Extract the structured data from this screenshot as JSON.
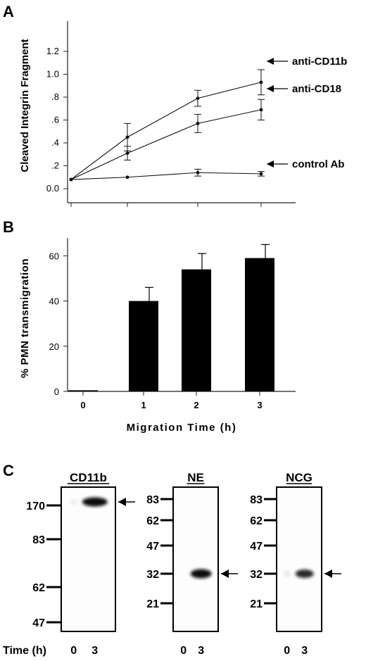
{
  "panels": {
    "a": "A",
    "b": "B",
    "c": "C"
  },
  "chart_data": [
    {
      "type": "line",
      "ylabel": "Cleaved Integrin Fragment",
      "yticks": [
        "0.0",
        ".2",
        ".4",
        ".6",
        ".8",
        "1.0",
        "1.2"
      ],
      "ylim": [
        0,
        1.3
      ],
      "x": [
        0,
        1,
        2,
        3
      ],
      "series": [
        {
          "name": "anti-CD11b",
          "values": [
            0.08,
            0.45,
            0.79,
            0.93
          ],
          "errors": [
            0.01,
            0.12,
            0.07,
            0.11
          ]
        },
        {
          "name": "anti-CD18",
          "values": [
            0.08,
            0.31,
            0.57,
            0.69
          ],
          "errors": [
            0.01,
            0.06,
            0.08,
            0.09
          ]
        },
        {
          "name": "control Ab",
          "values": [
            0.08,
            0.1,
            0.14,
            0.13
          ],
          "errors": [
            0.01,
            0.01,
            0.03,
            0.02
          ]
        }
      ],
      "grid": false
    },
    {
      "type": "bar",
      "ylabel": "% PMN transmigration",
      "xlabel": "Migration Time (h)",
      "categories": [
        "0",
        "1",
        "2",
        "3"
      ],
      "values": [
        0.5,
        40,
        54,
        59
      ],
      "errors": [
        0,
        6,
        7,
        6
      ],
      "yticks": [
        "0",
        "20",
        "40",
        "60"
      ],
      "ylim": [
        0,
        70
      ],
      "grid": false
    }
  ],
  "blots": [
    {
      "title": "CD11b",
      "markers": [
        {
          "label": "170",
          "kda": 170
        },
        {
          "label": "83",
          "kda": 83
        },
        {
          "label": "62",
          "kda": 62
        },
        {
          "label": "47",
          "kda": 47
        }
      ],
      "lanes": [
        "0",
        "3"
      ],
      "band_intensity": [
        0.05,
        1.0
      ]
    },
    {
      "title": "NE",
      "markers": [
        {
          "label": "83",
          "kda": 83
        },
        {
          "label": "62",
          "kda": 62
        },
        {
          "label": "47",
          "kda": 47
        },
        {
          "label": "32",
          "kda": 32
        },
        {
          "label": "21",
          "kda": 21
        }
      ],
      "lanes": [
        "0",
        "3"
      ],
      "band_intensity": [
        0.0,
        1.0
      ]
    },
    {
      "title": "NCG",
      "markers": [
        {
          "label": "83",
          "kda": 83
        },
        {
          "label": "62",
          "kda": 62
        },
        {
          "label": "47",
          "kda": 47
        },
        {
          "label": "32",
          "kda": 32
        },
        {
          "label": "21",
          "kda": 21
        }
      ],
      "lanes": [
        "0",
        "3"
      ],
      "band_intensity": [
        0.08,
        0.8
      ]
    }
  ],
  "time_label": "Time (h)",
  "colors": {
    "ink": "#000000",
    "axis": "#222222",
    "band": "#0a0a0a"
  }
}
